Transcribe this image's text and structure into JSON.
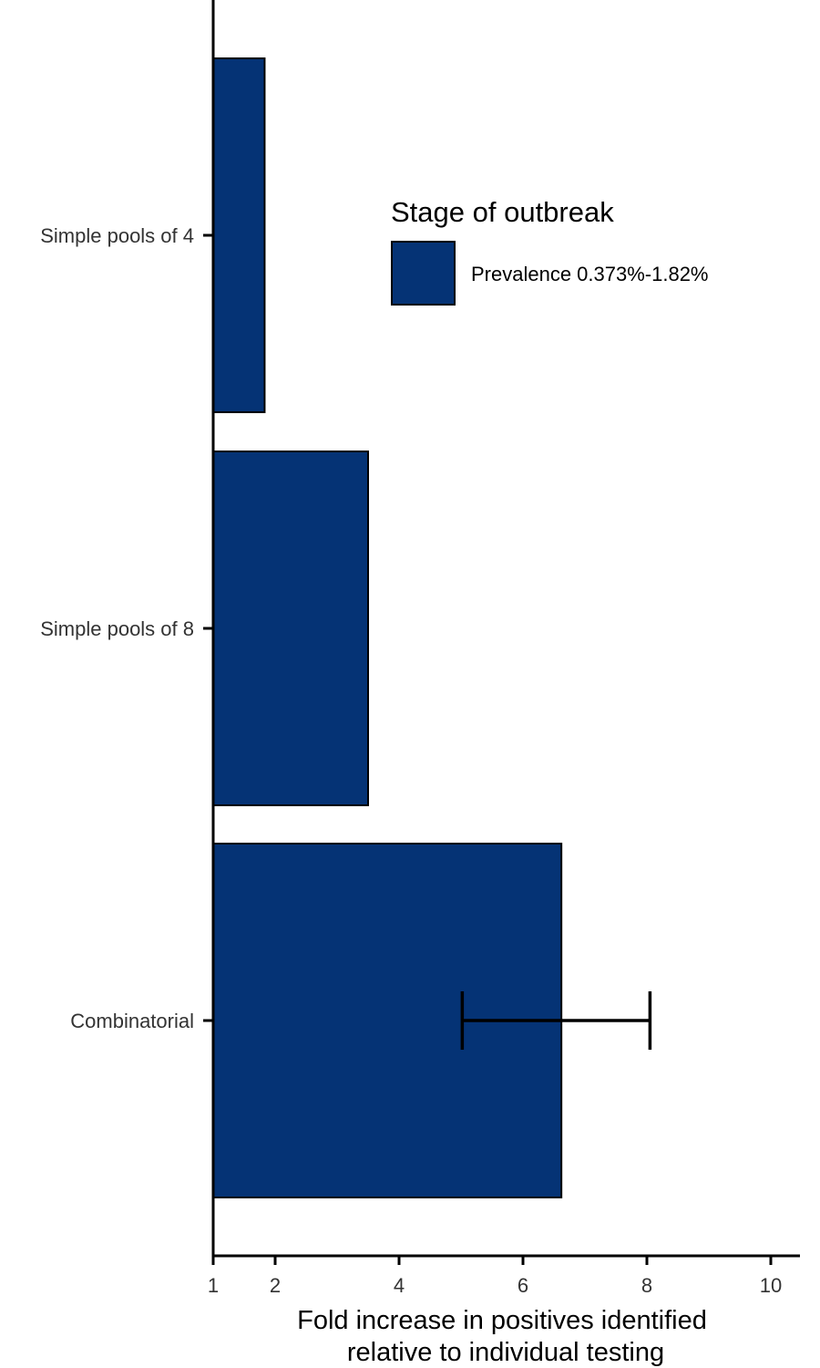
{
  "chart_data": {
    "type": "bar",
    "orientation": "horizontal",
    "categories": [
      "Simple pools of 4",
      "Simple pools of 8",
      "Combinatorial"
    ],
    "series": [
      {
        "name": "Prevalence 0.373%-1.82%",
        "values": [
          1.83,
          3.5,
          6.62
        ],
        "error_low": [
          null,
          null,
          5.02
        ],
        "error_high": [
          null,
          null,
          8.05
        ],
        "color": "#053375"
      }
    ],
    "xlabel": [
      "Fold increase in positives identified",
      "relative to individual testing"
    ],
    "ylabel": "",
    "xlim": [
      1,
      10.5
    ],
    "xticks": [
      1,
      2,
      4,
      6,
      8,
      10
    ],
    "grid": false,
    "legend": {
      "title": "Stage of outbreak",
      "placement": "upper-center"
    }
  }
}
